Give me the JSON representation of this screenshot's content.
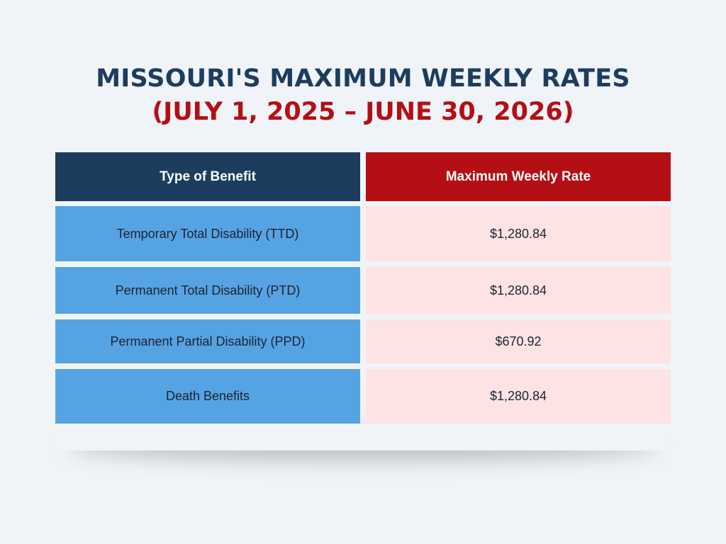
{
  "title": {
    "line1": "MISSOURI'S MAXIMUM WEEKLY RATES",
    "line2": "(JULY 1, 2025 – JUNE 30, 2026)"
  },
  "table": {
    "headers": [
      "Type of Benefit",
      "Maximum Weekly Rate"
    ],
    "rows": [
      {
        "benefit": "Temporary Total Disability (TTD)",
        "rate": "$1,280.84"
      },
      {
        "benefit": "Permanent Total Disability (PTD)",
        "rate": "$1,280.84"
      },
      {
        "benefit": "Permanent Partial Disability (PPD)",
        "rate": "$670.92"
      },
      {
        "benefit": "Death Benefits",
        "rate": "$1,280.84"
      }
    ]
  },
  "colors": {
    "navy": "#1d3d5e",
    "red": "#b30f14",
    "blue_cell": "#56a3e3",
    "pink_cell": "#fde3e3",
    "background": "#f0f4f8"
  }
}
